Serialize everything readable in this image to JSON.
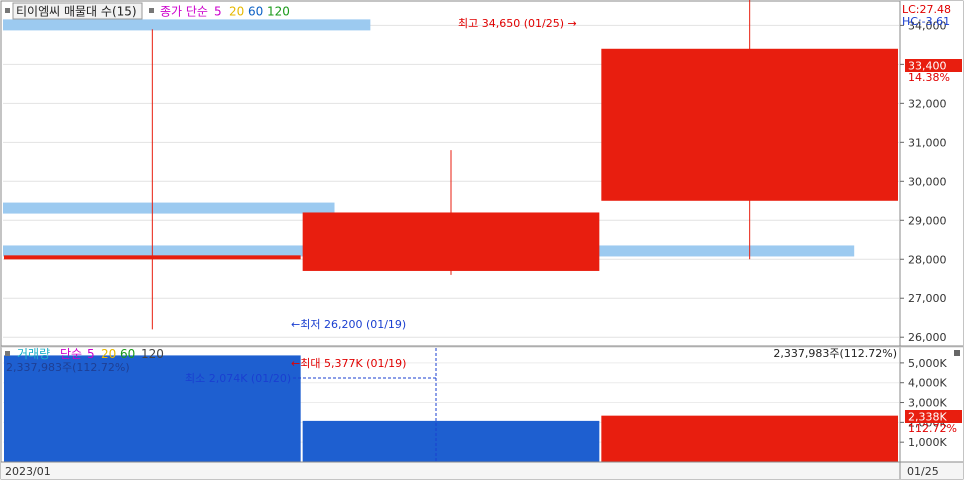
{
  "header": {
    "title": "티이엠씨 매물대 수(15)",
    "ma_label": "종가 단순",
    "ma_periods": [
      "5",
      "20",
      "60",
      "120"
    ],
    "ma_colors": [
      "#cc00cc",
      "#e6b800",
      "#0a5fc4",
      "#1a9a1a"
    ]
  },
  "right_top": {
    "lc": "LC:27.48",
    "hc": "HC:-3.61"
  },
  "price_panel": {
    "y_ticks": [
      "34,000",
      "33,000",
      "32,000",
      "31,000",
      "30,000",
      "29,000",
      "28,000",
      "27,000",
      "26,000"
    ],
    "current_price_label": "33,400",
    "current_change_label": "14.38%",
    "high_annotation": "최고 34,650 (01/25) →",
    "low_annotation": "←최저 26,200 (01/19)"
  },
  "volume_panel": {
    "legend_label": "거래량",
    "ma_label": "단순",
    "ma_periods": [
      "5",
      "20",
      "60",
      "120"
    ],
    "ma_colors": [
      "#cc00cc",
      "#e6b800",
      "#1a9a1a",
      "#444444"
    ],
    "left_readout": "2,337,983주(112.72%)",
    "right_readout": "2,337,983주(112.72%)",
    "max_annotation": "←최대 5,377K (01/19)",
    "min_annotation": "최소 2,074K (01/20)",
    "y_ticks": [
      "5,000K",
      "4,000K",
      "3,000K",
      "2,000K",
      "1,000K"
    ],
    "current_volume_label": "2,338K",
    "current_volume_pct": "112.72%"
  },
  "x_axis": {
    "left_label": "2023/01",
    "right_label": "01/25"
  },
  "colors": {
    "up": "#e81e0f",
    "volume_down": "#1e5fd0",
    "volume_bar_light": "#9ccaf0",
    "annotation_red": "#e00000",
    "annotation_blue": "#1a3fd0"
  },
  "chart_data": [
    {
      "type": "candlestick",
      "x": [
        "01/19",
        "01/20",
        "01/25"
      ],
      "open": [
        28000,
        27700,
        29500
      ],
      "high": [
        33900,
        30800,
        34650
      ],
      "low": [
        26200,
        27600,
        28000
      ],
      "close": [
        28100,
        29200,
        33400
      ],
      "ylim": [
        25800,
        34600
      ],
      "volume_profile": [
        {
          "price": 34000,
          "extent": 0.41
        },
        {
          "price": 29300,
          "extent": 0.37
        },
        {
          "price": 28200,
          "extent": 0.95
        }
      ]
    },
    {
      "type": "bar",
      "categories": [
        "01/19",
        "01/20",
        "01/25"
      ],
      "values": [
        5377,
        2074,
        2338
      ],
      "units": "K",
      "ylim": [
        0,
        5650
      ]
    }
  ]
}
